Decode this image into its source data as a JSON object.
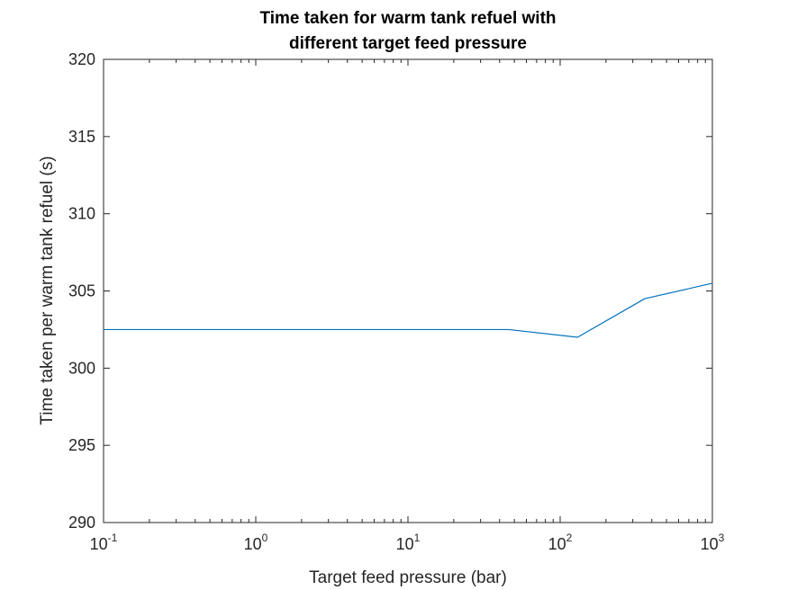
{
  "chart_data": {
    "type": "line",
    "title_lines": [
      "Time taken for warm tank refuel with",
      "different target feed pressure"
    ],
    "xlabel": "Target feed pressure (bar)",
    "ylabel": "Time taken per warm tank refuel (s)",
    "xscale": "log",
    "xlim": [
      0.1,
      1000
    ],
    "ylim": [
      290,
      320
    ],
    "grid": false,
    "legend": "none",
    "x_ticks": [
      {
        "base": "10",
        "exp": "-1"
      },
      {
        "base": "10",
        "exp": "0"
      },
      {
        "base": "10",
        "exp": "1"
      },
      {
        "base": "10",
        "exp": "2"
      },
      {
        "base": "10",
        "exp": "3"
      }
    ],
    "y_ticks": [
      "290",
      "295",
      "300",
      "305",
      "310",
      "315",
      "320"
    ],
    "series": [
      {
        "color": "#0072BD",
        "x": [
          0.1,
          1,
          10,
          46,
          130,
          360,
          1000
        ],
        "y": [
          302.5,
          302.5,
          302.5,
          302.5,
          302.0,
          304.5,
          305.5
        ]
      }
    ]
  }
}
